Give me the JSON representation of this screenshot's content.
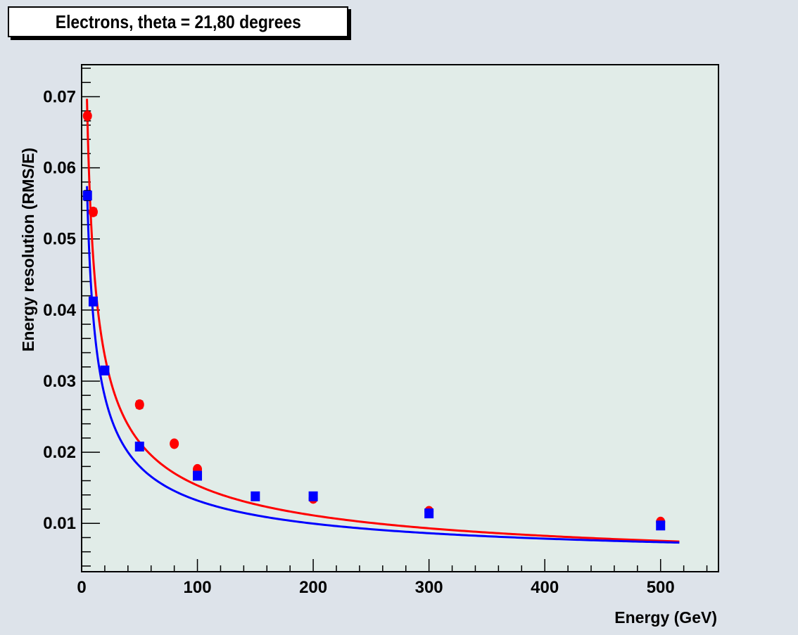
{
  "chart_data": {
    "type": "scatter",
    "title": "Electrons, theta = 21,80 degrees",
    "xlabel": "Energy (GeV)",
    "ylabel": "Energy resolution (RMS/E)",
    "xlim": [
      0,
      550
    ],
    "ylim": [
      0.0032,
      0.0745
    ],
    "xticks": [
      0,
      100,
      200,
      300,
      400,
      500
    ],
    "xtick_labels": [
      "0",
      "100",
      "200",
      "300",
      "400",
      "500"
    ],
    "yticks": [
      0.01,
      0.02,
      0.03,
      0.04,
      0.05,
      0.06,
      0.07
    ],
    "ytick_labels": [
      "0.01",
      "0.02",
      "0.03",
      "0.04",
      "0.05",
      "0.06",
      "0.07"
    ],
    "grid": false,
    "series": [
      {
        "color": "#ff0000",
        "marker": "circle",
        "x": [
          5,
          10,
          50,
          80,
          100,
          200,
          300,
          500
        ],
        "y": [
          0.0673,
          0.0538,
          0.0267,
          0.0212,
          0.0176,
          0.0135,
          0.0117,
          0.0102
        ],
        "yerr": [
          0.0007,
          0.0005,
          0.0005,
          0.0002,
          0.0003,
          0.0002,
          0.0002,
          0.0001
        ],
        "fit": {
          "a": 0.1493,
          "b": 0.0035,
          "c": 0.0024
        }
      },
      {
        "color": "#0000ff",
        "marker": "square",
        "x": [
          5,
          10,
          20,
          50,
          100,
          150,
          200,
          300,
          500
        ],
        "y": [
          0.0561,
          0.0412,
          0.0315,
          0.0208,
          0.0167,
          0.0138,
          0.0138,
          0.0114,
          0.0097
        ],
        "yerr": [
          0.0007,
          0.0005,
          0.0003,
          0.0002,
          0.0002,
          0.0002,
          0.0002,
          0.0001,
          0.0001
        ],
        "fit": {
          "a": 0.1227,
          "b": 0.0049,
          "c": 0.0013
        }
      }
    ]
  }
}
